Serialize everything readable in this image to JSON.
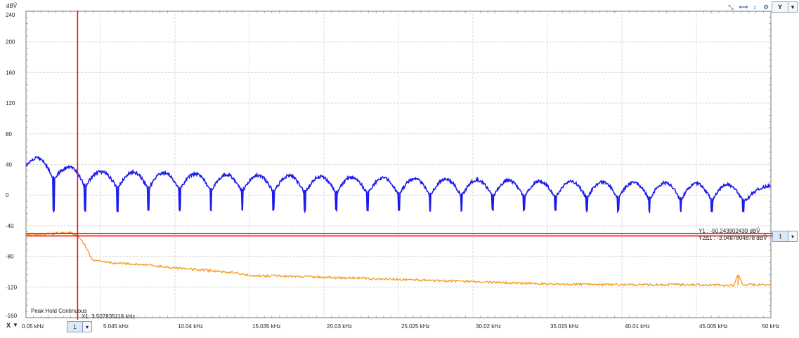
{
  "toolbar": {
    "icons": [
      "zoom-auto-icon",
      "zoom-horizontal-icon",
      "zoom-vertical-icon",
      "settings-icon"
    ],
    "axis_selector": "Y",
    "x_axis_label": "X"
  },
  "annotations": {
    "trace_mode": "Peak Hold Continuous",
    "x1_readout": "X1: 3.507835116 kHz",
    "y1_readout": "Y1 : -50.243902439 dBV̂",
    "y2_readout": "Y2Δ1 : -3.0487804878 dBV̂",
    "y_channel": "1",
    "x_channel": "1"
  },
  "colors": {
    "series_blue": "#1a1aee",
    "series_orange": "#f59a1f",
    "cursor": "#ee1111",
    "grid": "#cfcfcf"
  },
  "chart_data": {
    "type": "line",
    "ylabel": "dBV̂",
    "xlabel": "",
    "xlim": [
      0.05,
      50
    ],
    "ylim": [
      -160,
      240
    ],
    "x_ticks": [
      "0.05 kHz",
      "5.045 kHz",
      "10.04 kHz",
      "15.035 kHz",
      "20.03 kHz",
      "25.025 kHz",
      "30.02 kHz",
      "35.015 kHz",
      "40.01 kHz",
      "45.005 kHz",
      "50 kHz"
    ],
    "y_ticks": [
      240,
      200,
      160,
      120,
      80,
      40,
      0,
      -40,
      -80,
      -120,
      -160
    ],
    "grid": true,
    "cursors": {
      "x1": 3.507835116,
      "y1": -50.243902439,
      "y2": -53.2926829268
    },
    "series": [
      {
        "color": "#1a1aee",
        "x": [
          0.05,
          1.5,
          2.7,
          3.3,
          4.2,
          5.4,
          7.5,
          9.6,
          10.8,
          12.6,
          15.2,
          17.6,
          20.4,
          25.0,
          30.0,
          35.0,
          40.0,
          45.0,
          50.0
        ],
        "y": [
          50,
          46,
          36,
          37,
          32,
          30,
          30,
          29,
          28,
          27,
          26,
          25,
          24,
          22,
          20,
          18,
          17,
          15,
          12
        ],
        "notch_x": [
          1.9,
          4.0,
          6.2,
          8.25,
          10.35,
          12.45,
          14.55,
          16.65,
          18.75,
          20.85,
          22.95,
          25.05,
          27.15,
          29.25,
          31.35,
          33.45,
          35.55,
          37.65,
          39.75,
          41.85,
          43.95,
          46.05,
          48.15
        ],
        "notch_depth": -20
      },
      {
        "color": "#f59a1f",
        "x": [
          0.05,
          1.0,
          2.0,
          3.0,
          3.5,
          4.0,
          4.5,
          5.5,
          8.0,
          10.0,
          12.0,
          14.0,
          15.0,
          18.0,
          20.0,
          25.0,
          30.0,
          35.0,
          40.0,
          45.0,
          47.5,
          47.8,
          48.1,
          50.0
        ],
        "y": [
          -52,
          -51,
          -50,
          -49,
          -53,
          -65,
          -85,
          -88,
          -91,
          -95,
          -98,
          -101,
          -105,
          -106,
          -107,
          -110,
          -113,
          -116,
          -117,
          -117,
          -118,
          -104,
          -117,
          -117
        ]
      }
    ]
  }
}
